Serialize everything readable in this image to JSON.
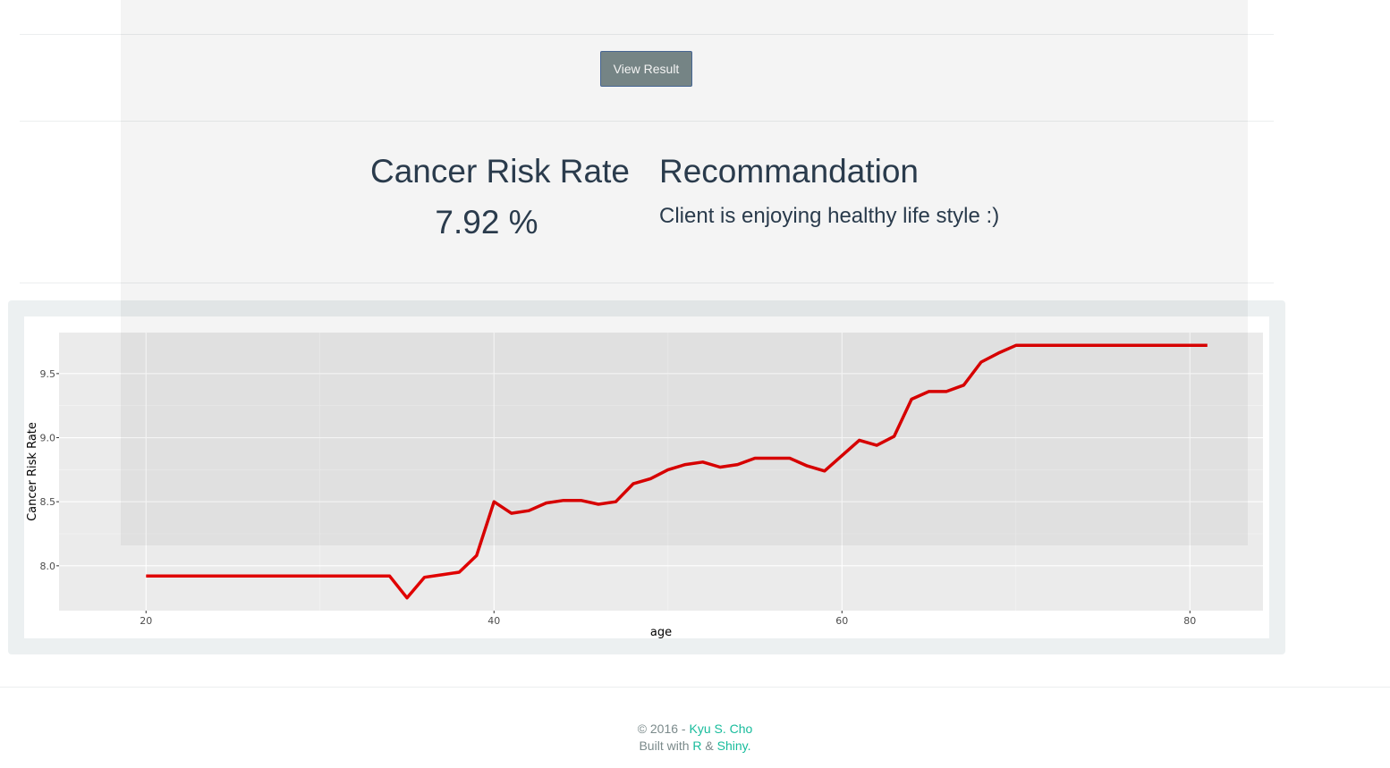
{
  "button": {
    "view_result": "View Result"
  },
  "risk": {
    "heading": "Cancer Risk Rate",
    "value": "7.92 %"
  },
  "recommendation": {
    "heading": "Recommandation",
    "text": "Client is enjoying healthy life style :)"
  },
  "footer": {
    "copyright_prefix": "© 2016 - ",
    "author": "Kyu S. Cho",
    "built_prefix": "Built with ",
    "r_link": "R",
    "amp": " & ",
    "shiny_link": "Shiny."
  },
  "colors": {
    "line": "#e00000",
    "panel": "#ebebeb",
    "accent": "#18bc9c",
    "button": "#7b8a8b"
  },
  "chart_data": {
    "type": "line",
    "xlabel": "age",
    "ylabel": "Cancer Risk Rate",
    "xlim": [
      15,
      84.2
    ],
    "ylim": [
      7.65,
      9.82
    ],
    "xticks": [
      20,
      40,
      60,
      80
    ],
    "yticks": [
      8.0,
      8.5,
      9.0,
      9.5
    ],
    "xtick_labels": [
      "20",
      "40",
      "60",
      "80"
    ],
    "ytick_labels": [
      "8.0",
      "8.5",
      "9.0",
      "9.5"
    ],
    "grid": true,
    "series": [
      {
        "x": [
          20,
          21,
          22,
          23,
          24,
          25,
          26,
          27,
          28,
          29,
          30,
          31,
          32,
          33,
          34,
          35,
          36,
          37,
          38,
          39,
          40,
          41,
          42,
          43,
          44,
          45,
          46,
          47,
          48,
          49,
          50,
          51,
          52,
          53,
          54,
          55,
          56,
          57,
          58,
          59,
          60,
          61,
          62,
          63,
          64,
          65,
          66,
          67,
          68,
          69,
          70,
          71,
          72,
          73,
          74,
          75,
          76,
          77,
          78,
          79,
          80,
          81
        ],
        "y": [
          7.92,
          7.92,
          7.92,
          7.92,
          7.92,
          7.92,
          7.92,
          7.92,
          7.92,
          7.92,
          7.92,
          7.92,
          7.92,
          7.92,
          7.92,
          7.75,
          7.91,
          7.93,
          7.95,
          8.08,
          8.5,
          8.41,
          8.43,
          8.49,
          8.51,
          8.51,
          8.48,
          8.5,
          8.64,
          8.68,
          8.75,
          8.79,
          8.81,
          8.77,
          8.79,
          8.84,
          8.84,
          8.84,
          8.78,
          8.74,
          8.86,
          8.98,
          8.94,
          9.01,
          9.3,
          9.36,
          9.36,
          9.41,
          9.59,
          9.66,
          9.72,
          9.72,
          9.72,
          9.72,
          9.72,
          9.72,
          9.72,
          9.72,
          9.72,
          9.72,
          9.72,
          9.72
        ]
      }
    ]
  }
}
